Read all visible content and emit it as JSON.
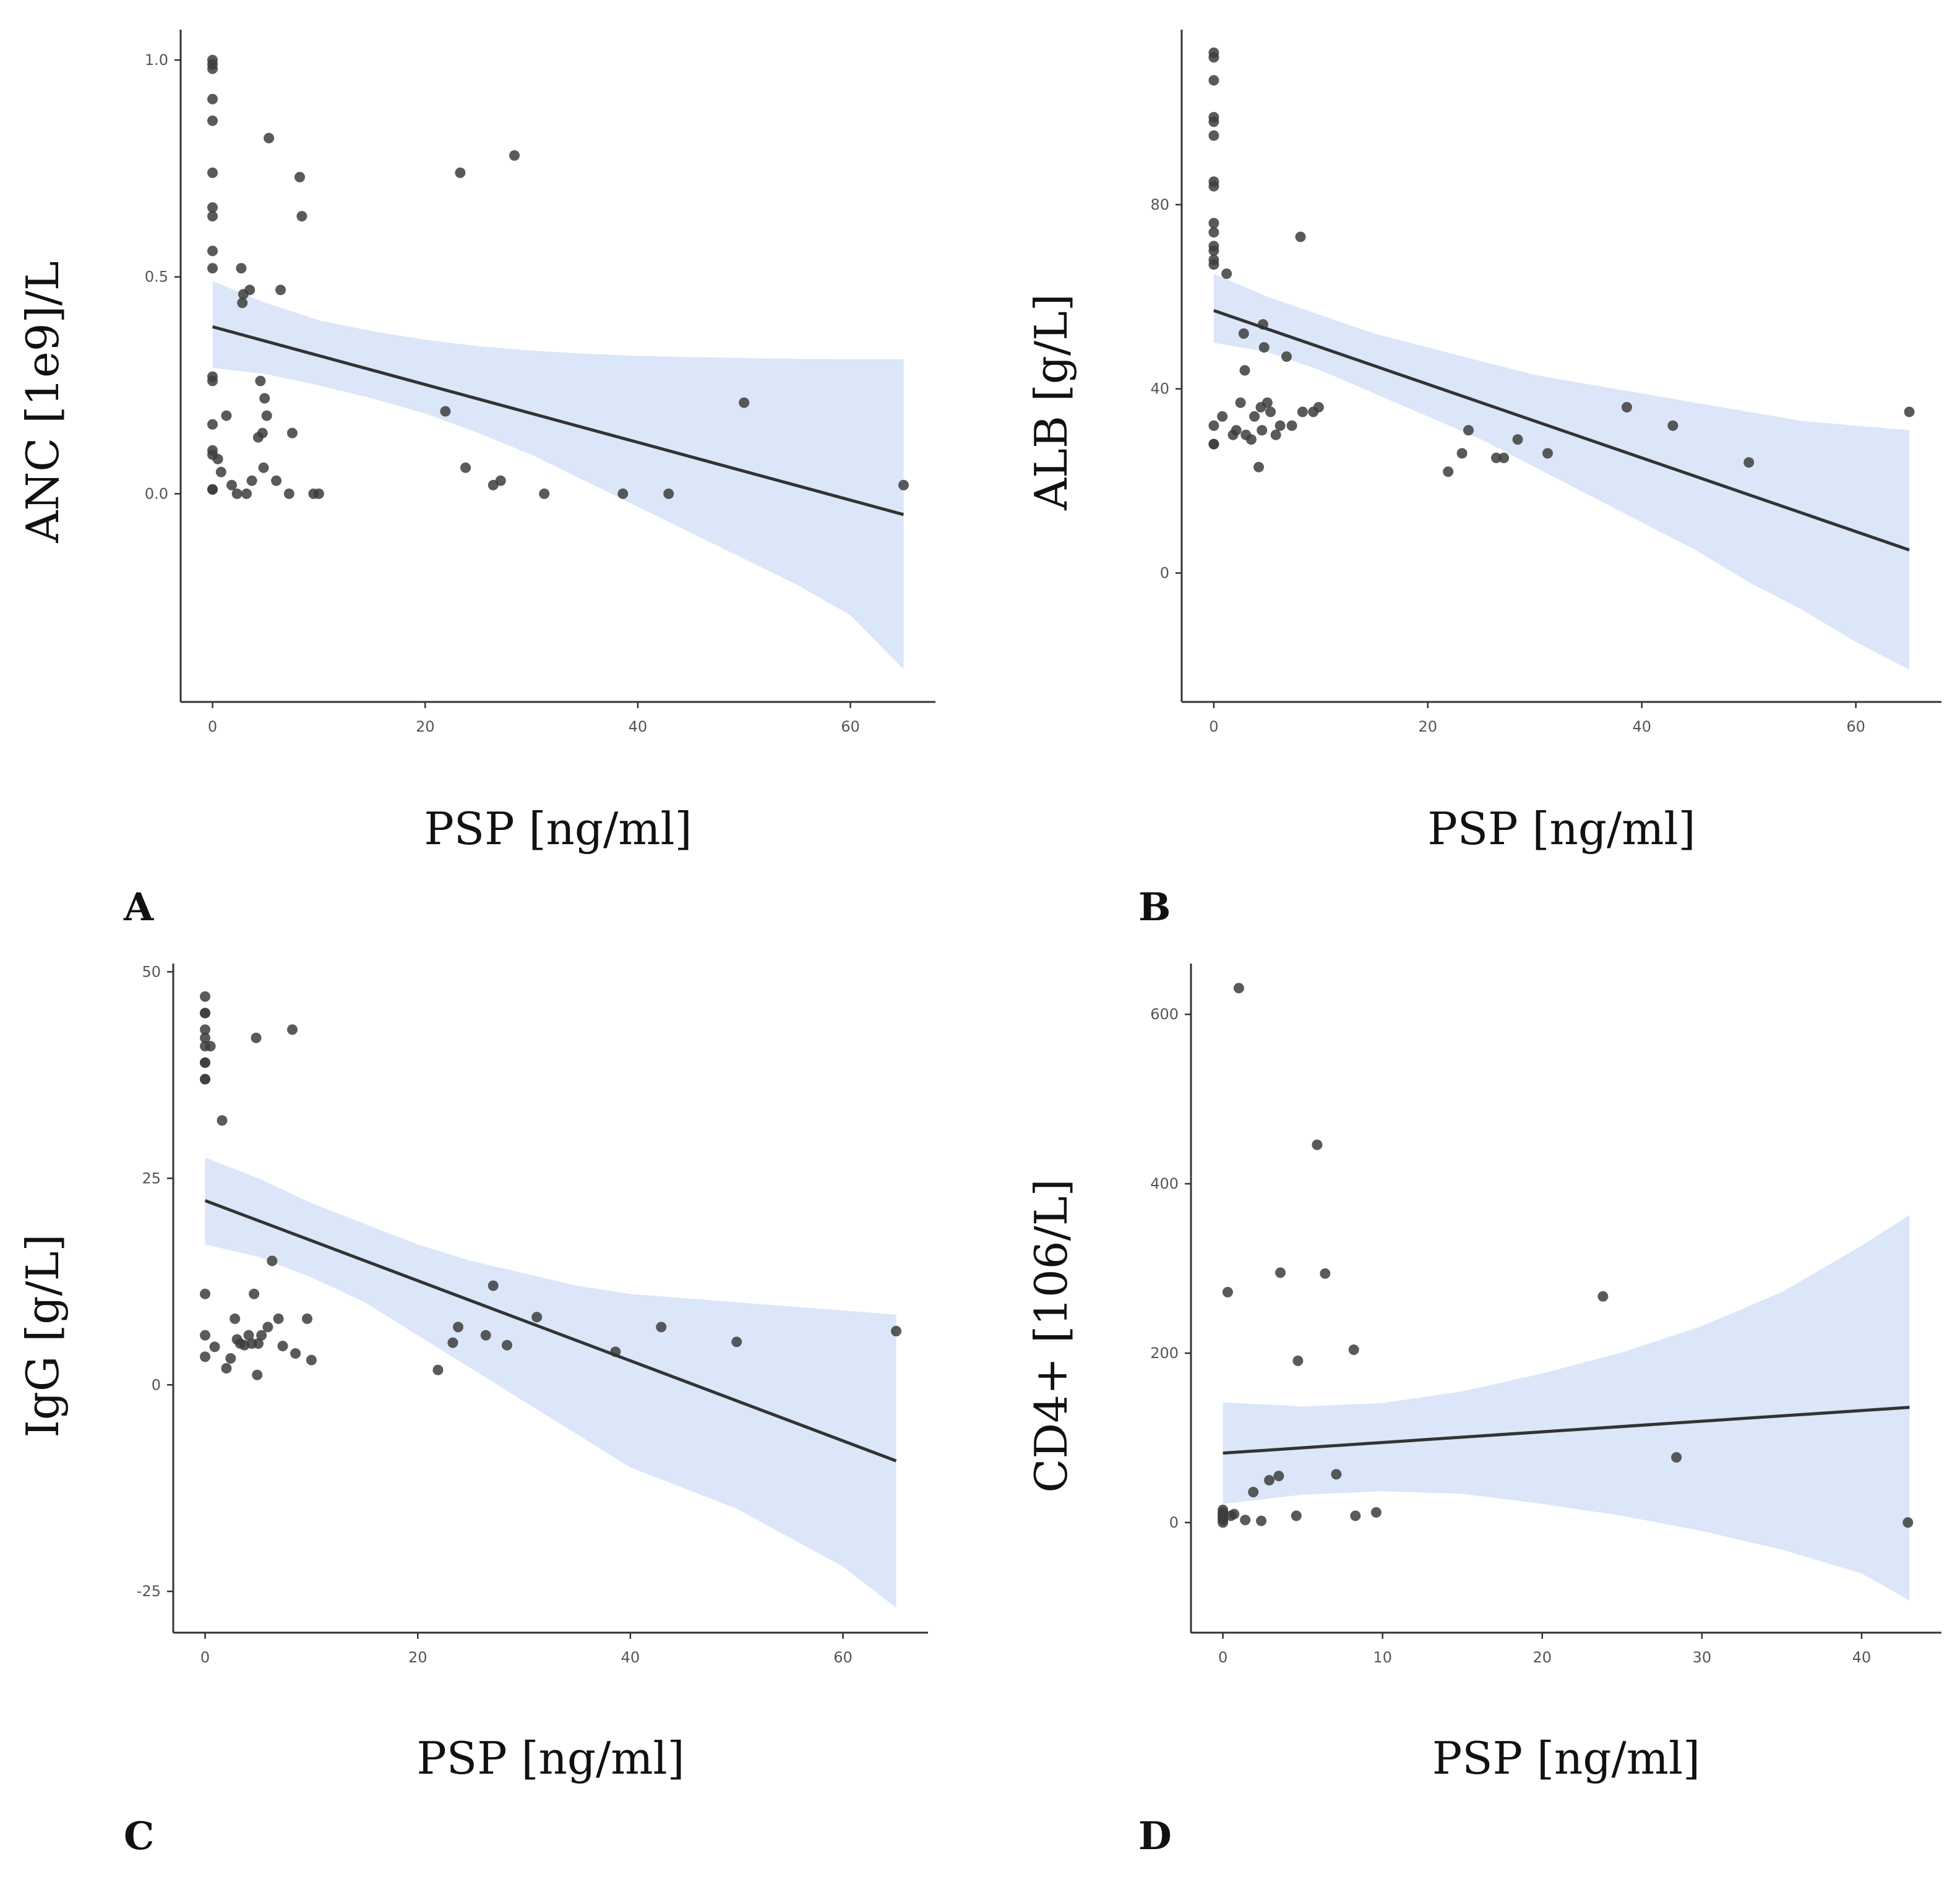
{
  "chart_data": [
    {
      "id": "A",
      "type": "scatter",
      "panel_label": "A",
      "xlabel": "PSP [ng/ml]",
      "ylabel": "ANC [1e9]/L",
      "xlim": [
        -3,
        68
      ],
      "ylim": [
        -0.48,
        1.07
      ],
      "xticks": [
        0,
        20,
        40,
        60
      ],
      "xtick_labels": [
        "0",
        "20",
        "40",
        "60"
      ],
      "yticks": [
        0,
        0.5,
        1
      ],
      "ytick_labels": [
        "0.0",
        "0.5",
        "1.0"
      ],
      "fit": {
        "x": [
          0,
          65
        ],
        "y": [
          0.385,
          -0.048
        ]
      },
      "ci_band": {
        "x": [
          0,
          5,
          10,
          15,
          20,
          25,
          30,
          35,
          40,
          45,
          50,
          55,
          60,
          65
        ],
        "lower": [
          0.29,
          0.276,
          0.25,
          0.22,
          0.185,
          0.14,
          0.09,
          0.03,
          -0.03,
          -0.09,
          -0.15,
          -0.21,
          -0.28,
          -0.405
        ],
        "upper": [
          0.49,
          0.44,
          0.4,
          0.375,
          0.355,
          0.34,
          0.33,
          0.323,
          0.318,
          0.315,
          0.313,
          0.311,
          0.31,
          0.31
        ]
      },
      "points": [
        [
          0,
          1.0
        ],
        [
          0,
          0.99
        ],
        [
          0,
          0.98
        ],
        [
          0,
          0.91
        ],
        [
          0,
          0.86
        ],
        [
          0,
          0.74
        ],
        [
          0,
          0.66
        ],
        [
          0,
          0.64
        ],
        [
          0,
          0.56
        ],
        [
          0,
          0.52
        ],
        [
          0,
          0.27
        ],
        [
          0,
          0.26
        ],
        [
          0,
          0.16
        ],
        [
          0,
          0.1
        ],
        [
          0,
          0.09
        ],
        [
          0,
          0.01
        ],
        [
          0,
          0.01
        ],
        [
          0.5,
          0.08
        ],
        [
          0.8,
          0.05
        ],
        [
          1.3,
          0.18
        ],
        [
          1.8,
          0.02
        ],
        [
          2.3,
          0.0
        ],
        [
          2.7,
          0.52
        ],
        [
          2.9,
          0.46
        ],
        [
          2.8,
          0.44
        ],
        [
          3.2,
          0.0
        ],
        [
          3.5,
          0.47
        ],
        [
          3.7,
          0.03
        ],
        [
          4.3,
          0.13
        ],
        [
          4.5,
          0.26
        ],
        [
          4.7,
          0.14
        ],
        [
          4.8,
          0.06
        ],
        [
          4.9,
          0.22
        ],
        [
          5.1,
          0.18
        ],
        [
          5.3,
          0.82
        ],
        [
          6.0,
          0.03
        ],
        [
          6.4,
          0.47
        ],
        [
          7.2,
          0.0
        ],
        [
          7.5,
          0.14
        ],
        [
          8.2,
          0.73
        ],
        [
          8.4,
          0.64
        ],
        [
          9.5,
          0.0
        ],
        [
          10.0,
          0.0
        ],
        [
          21.9,
          0.19
        ],
        [
          23.3,
          0.74
        ],
        [
          23.8,
          0.06
        ],
        [
          26.4,
          0.02
        ],
        [
          27.1,
          0.03
        ],
        [
          28.4,
          0.78
        ],
        [
          31.2,
          0.0
        ],
        [
          38.6,
          0.0
        ],
        [
          42.9,
          0.0
        ],
        [
          50.0,
          0.21
        ],
        [
          65.0,
          0.02
        ]
      ]
    },
    {
      "id": "B",
      "type": "scatter",
      "panel_label": "B",
      "xlabel": "PSP [ng/ml]",
      "ylabel": "ALB [g/L]",
      "xlim": [
        -3,
        68
      ],
      "ylim": [
        -28,
        118
      ],
      "xticks": [
        0,
        20,
        40,
        60
      ],
      "xtick_labels": [
        "0",
        "20",
        "40",
        "60"
      ],
      "yticks": [
        0,
        40,
        80
      ],
      "ytick_labels": [
        "0",
        "40",
        "80"
      ],
      "fit": {
        "x": [
          0,
          65
        ],
        "y": [
          57,
          5
        ]
      },
      "ci_band": {
        "x": [
          0,
          5,
          10,
          15,
          20,
          25,
          30,
          35,
          40,
          45,
          50,
          55,
          60,
          65
        ],
        "lower": [
          50,
          48,
          44,
          39,
          34,
          29,
          23,
          17,
          11,
          5,
          -2,
          -8,
          -15,
          -21
        ],
        "upper": [
          65,
          60,
          56,
          52,
          49,
          46,
          43,
          41,
          39,
          37,
          35,
          33,
          32,
          31
        ]
      },
      "points": [
        [
          0,
          113
        ],
        [
          0,
          112
        ],
        [
          0,
          107
        ],
        [
          0,
          99
        ],
        [
          0,
          98
        ],
        [
          0,
          95
        ],
        [
          0,
          85
        ],
        [
          0,
          84
        ],
        [
          0,
          76
        ],
        [
          0,
          74
        ],
        [
          0,
          71
        ],
        [
          0,
          70
        ],
        [
          0,
          68
        ],
        [
          0,
          67
        ],
        [
          0,
          32
        ],
        [
          0,
          28
        ],
        [
          0,
          28
        ],
        [
          0.8,
          34
        ],
        [
          1.2,
          65
        ],
        [
          1.8,
          30
        ],
        [
          2.1,
          31
        ],
        [
          2.5,
          37
        ],
        [
          2.8,
          52
        ],
        [
          2.9,
          44
        ],
        [
          3.0,
          30
        ],
        [
          3.5,
          29
        ],
        [
          3.8,
          34
        ],
        [
          4.2,
          23
        ],
        [
          4.4,
          36
        ],
        [
          4.5,
          31
        ],
        [
          4.6,
          54
        ],
        [
          4.7,
          49
        ],
        [
          5.0,
          37
        ],
        [
          5.3,
          35
        ],
        [
          5.8,
          30
        ],
        [
          6.2,
          32
        ],
        [
          6.8,
          47
        ],
        [
          7.3,
          32
        ],
        [
          8.1,
          73
        ],
        [
          8.3,
          35
        ],
        [
          9.3,
          35
        ],
        [
          9.8,
          36
        ],
        [
          21.9,
          22
        ],
        [
          23.2,
          26
        ],
        [
          23.8,
          31
        ],
        [
          26.4,
          25
        ],
        [
          27.1,
          25
        ],
        [
          28.4,
          29
        ],
        [
          31.2,
          26
        ],
        [
          38.6,
          36
        ],
        [
          42.9,
          32
        ],
        [
          50.0,
          24
        ],
        [
          65.0,
          35
        ]
      ]
    },
    {
      "id": "C",
      "type": "scatter",
      "panel_label": "C",
      "xlabel": "PSP [ng/ml]",
      "ylabel": "IgG [g/L]",
      "xlim": [
        -3,
        68
      ],
      "ylim": [
        -30,
        51
      ],
      "xticks": [
        0,
        20,
        40,
        60
      ],
      "xtick_labels": [
        "0",
        "20",
        "40",
        "60"
      ],
      "yticks": [
        -25,
        0,
        25,
        50
      ],
      "ytick_labels": [
        "-25",
        "0",
        "25",
        "50"
      ],
      "fit": {
        "x": [
          0,
          65
        ],
        "y": [
          22.3,
          -9.2
        ]
      },
      "ci_band": {
        "x": [
          0,
          5,
          10,
          15,
          20,
          25,
          30,
          35,
          40,
          45,
          50,
          55,
          60,
          65
        ],
        "lower": [
          17,
          15.5,
          13,
          10,
          6,
          2,
          -2,
          -6,
          -10,
          -12.5,
          -15,
          -18.5,
          -22,
          -27
        ],
        "upper": [
          27.5,
          25,
          22,
          19.5,
          17,
          15,
          13.5,
          12,
          11,
          10.5,
          10,
          9.5,
          9,
          8.5
        ]
      },
      "points": [
        [
          0,
          47
        ],
        [
          0,
          45
        ],
        [
          0,
          45
        ],
        [
          0,
          43
        ],
        [
          0,
          42
        ],
        [
          0,
          41
        ],
        [
          0,
          39
        ],
        [
          0,
          39
        ],
        [
          0,
          37
        ],
        [
          0,
          37
        ],
        [
          0,
          11
        ],
        [
          0,
          6
        ],
        [
          0,
          3.4
        ],
        [
          0.5,
          41
        ],
        [
          0.9,
          4.6
        ],
        [
          1.6,
          32
        ],
        [
          2.0,
          2.0
        ],
        [
          2.4,
          3.2
        ],
        [
          2.8,
          8
        ],
        [
          3.0,
          5.5
        ],
        [
          3.3,
          5
        ],
        [
          3.7,
          4.8
        ],
        [
          4.1,
          6
        ],
        [
          4.4,
          5
        ],
        [
          4.6,
          11
        ],
        [
          4.8,
          42
        ],
        [
          4.9,
          1.2
        ],
        [
          5.0,
          5
        ],
        [
          5.3,
          6
        ],
        [
          5.9,
          7
        ],
        [
          6.3,
          15
        ],
        [
          6.9,
          8
        ],
        [
          7.3,
          4.7
        ],
        [
          8.2,
          43
        ],
        [
          8.5,
          3.8
        ],
        [
          9.6,
          8
        ],
        [
          10.0,
          3.0
        ],
        [
          21.9,
          1.8
        ],
        [
          23.3,
          5.1
        ],
        [
          23.8,
          7
        ],
        [
          26.4,
          6
        ],
        [
          27.1,
          12
        ],
        [
          28.4,
          4.8
        ],
        [
          31.2,
          8.2
        ],
        [
          38.6,
          4
        ],
        [
          42.9,
          7
        ],
        [
          50.0,
          5.2
        ],
        [
          65.0,
          6.5
        ]
      ]
    },
    {
      "id": "D",
      "type": "scatter",
      "panel_label": "D",
      "xlabel": "PSP [ng/ml]",
      "ylabel": "CD4+ [106/L]",
      "xlim": [
        -2,
        45
      ],
      "ylim": [
        -130,
        660
      ],
      "xticks": [
        0,
        10,
        20,
        30,
        40
      ],
      "xtick_labels": [
        "0",
        "10",
        "20",
        "30",
        "40"
      ],
      "yticks": [
        0,
        200,
        400,
        600
      ],
      "ytick_labels": [
        "0",
        "200",
        "400",
        "600"
      ],
      "fit": {
        "x": [
          0,
          43
        ],
        "y": [
          82,
          136
        ]
      },
      "ci_band": {
        "x": [
          0,
          5,
          10,
          15,
          20,
          25,
          30,
          35,
          40,
          43
        ],
        "lower": [
          22,
          33,
          37,
          34,
          22,
          8,
          -10,
          -32,
          -60,
          -92
        ],
        "upper": [
          142,
          137,
          141,
          155,
          176,
          201,
          232,
          272,
          327,
          363
        ]
      },
      "points": [
        [
          0,
          0
        ],
        [
          0,
          3
        ],
        [
          0,
          5
        ],
        [
          0,
          8
        ],
        [
          0,
          10
        ],
        [
          0,
          12
        ],
        [
          0,
          15
        ],
        [
          0.3,
          272
        ],
        [
          0.5,
          8
        ],
        [
          0.7,
          10
        ],
        [
          1.0,
          631
        ],
        [
          1.4,
          3
        ],
        [
          1.9,
          36
        ],
        [
          2.4,
          2
        ],
        [
          2.9,
          50
        ],
        [
          3.5,
          55
        ],
        [
          3.6,
          295
        ],
        [
          4.6,
          8
        ],
        [
          4.7,
          191
        ],
        [
          5.9,
          446
        ],
        [
          6.4,
          294
        ],
        [
          7.1,
          57
        ],
        [
          8.2,
          204
        ],
        [
          8.3,
          8
        ],
        [
          9.6,
          12
        ],
        [
          23.8,
          267
        ],
        [
          28.4,
          77
        ],
        [
          42.9,
          0
        ]
      ]
    }
  ]
}
